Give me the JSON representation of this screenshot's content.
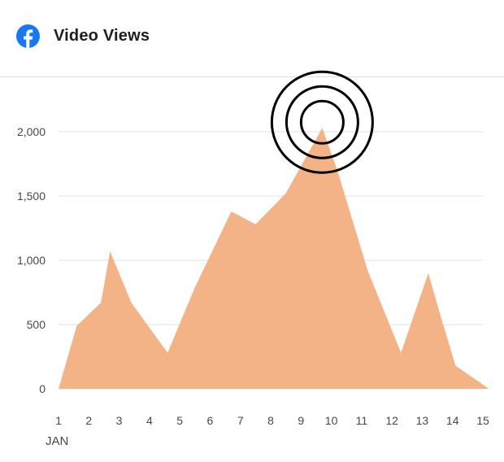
{
  "header": {
    "title": "Video Views",
    "icon": "facebook-logo-icon",
    "brand_color": "#1877f2"
  },
  "chart_data": {
    "type": "area",
    "title": "Video Views",
    "x_unit_label": "JAN",
    "x": [
      1,
      1.6,
      2.4,
      2.7,
      3.4,
      4.6,
      5.5,
      6.7,
      7.5,
      8.5,
      9.7,
      10.2,
      11.2,
      12.3,
      13.2,
      13.6,
      14.1,
      15.2
    ],
    "y": [
      0,
      490,
      670,
      1070,
      670,
      280,
      790,
      1380,
      1280,
      1520,
      2030,
      1700,
      920,
      280,
      900,
      570,
      180,
      0
    ],
    "x_ticks": [
      "1",
      "2",
      "3",
      "4",
      "5",
      "6",
      "7",
      "8",
      "9",
      "10",
      "11",
      "12",
      "13",
      "14",
      "15"
    ],
    "y_ticks": [
      "0",
      "500",
      "1,000",
      "1,500",
      "2,000"
    ],
    "ylim": [
      0,
      2000
    ],
    "grid": true,
    "fill_color": "#f4b386",
    "highlight": {
      "x": 9.7,
      "y": 2030,
      "marker": "target-rings"
    }
  }
}
